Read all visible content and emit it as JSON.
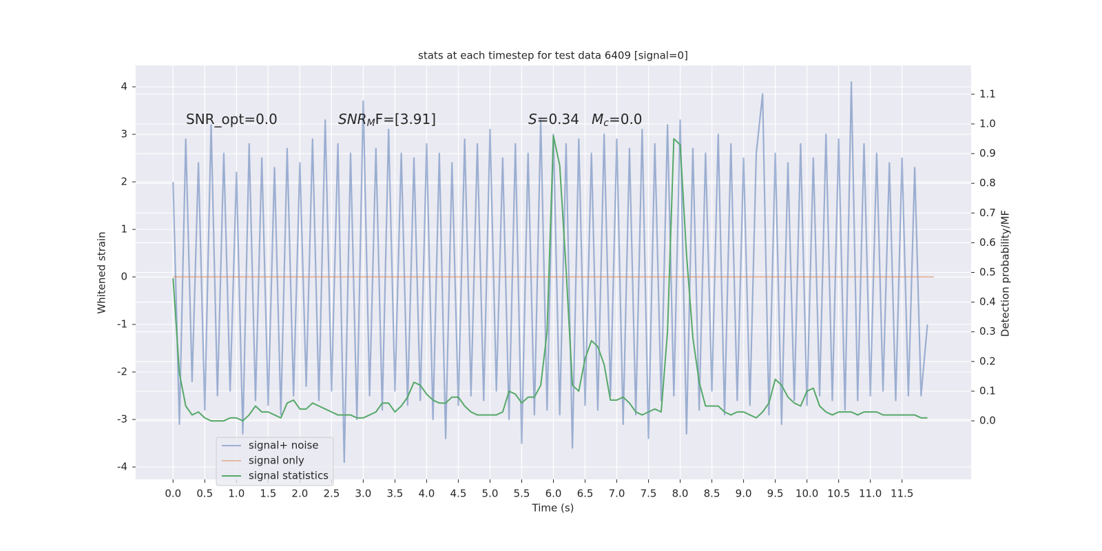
{
  "chart_data": {
    "type": "line",
    "title": "stats at each timestep for test data 6409 [signal=0]",
    "xlabel": "Time (s)",
    "ylabel": "Whitened strain",
    "y2label": "Detection probability/MF",
    "xlim": [
      -0.59,
      12.59
    ],
    "ylim": [
      -4.26,
      4.45
    ],
    "y2lim": [
      -0.197,
      1.197
    ],
    "xticks": [
      {
        "value": 0,
        "label": "0.0"
      },
      0.5,
      {
        "value": 1,
        "label": "1.0"
      },
      1.5,
      {
        "value": 2,
        "label": "2.0"
      },
      2.5,
      {
        "value": 3,
        "label": "3.0"
      },
      3.5,
      {
        "value": 4,
        "label": "4.0"
      },
      4.5,
      {
        "value": 5,
        "label": "5.0"
      },
      5.5,
      {
        "value": 6,
        "label": "6.0"
      },
      6.5,
      {
        "value": 7,
        "label": "7.0"
      },
      7.5,
      {
        "value": 8,
        "label": "8.0"
      },
      8.5,
      {
        "value": 9,
        "label": "9.0"
      },
      9.5,
      {
        "value": 10,
        "label": "10.0"
      },
      10.5,
      {
        "value": 11,
        "label": "11.0"
      },
      11.5
    ],
    "yticks": [
      -4,
      -3,
      -2,
      -1,
      0,
      1,
      2,
      3,
      4
    ],
    "y2ticks": [
      {
        "value": 0,
        "label": "0.0"
      },
      0.1,
      0.2,
      0.3,
      0.4,
      0.5,
      0.6,
      0.7,
      0.8,
      0.9,
      {
        "value": 1,
        "label": "1.0"
      },
      1.1
    ],
    "grid": true,
    "legend": "lower left",
    "annotations": [
      {
        "text": "SNR_opt=0.0"
      },
      {
        "italic": "SNR",
        "sub": "M",
        "text": "F=[3.91]"
      },
      {
        "italic": "S",
        "text": "=0.34"
      },
      {
        "italic": "M",
        "sub": "c",
        "text": "=0.0"
      }
    ],
    "series": [
      {
        "name": "signal+ noise",
        "color": "#4c72b0",
        "x": [
          0.0,
          0.1,
          0.2,
          0.3,
          0.4,
          0.5,
          0.6,
          0.7,
          0.8,
          0.9,
          1.0,
          1.1,
          1.2,
          1.3,
          1.4,
          1.5,
          1.6,
          1.7,
          1.8,
          1.9,
          2.0,
          2.1,
          2.2,
          2.3,
          2.4,
          2.5,
          2.6,
          2.7,
          2.8,
          2.9,
          3.0,
          3.1,
          3.2,
          3.3,
          3.4,
          3.5,
          3.6,
          3.7,
          3.8,
          3.9,
          4.0,
          4.1,
          4.2,
          4.3,
          4.4,
          4.5,
          4.6,
          4.7,
          4.8,
          4.9,
          5.0,
          5.1,
          5.2,
          5.3,
          5.4,
          5.5,
          5.6,
          5.7,
          5.8,
          5.9,
          6.0,
          6.1,
          6.2,
          6.3,
          6.4,
          6.5,
          6.6,
          6.7,
          6.8,
          6.9,
          7.0,
          7.1,
          7.2,
          7.3,
          7.4,
          7.5,
          7.6,
          7.7,
          7.8,
          7.9,
          8.0,
          8.1,
          8.2,
          8.3,
          8.4,
          8.5,
          8.6,
          8.7,
          8.8,
          8.9,
          9.0,
          9.1,
          9.2,
          9.3,
          9.4,
          9.5,
          9.6,
          9.7,
          9.8,
          9.9,
          10.0,
          10.1,
          10.2,
          10.3,
          10.4,
          10.5,
          10.6,
          10.7,
          10.8,
          10.9,
          11.0,
          11.1,
          11.2,
          11.3,
          11.4,
          11.5,
          11.6,
          11.7,
          11.8,
          11.9
        ],
        "values": [
          2.0,
          -3.1,
          2.9,
          -2.2,
          2.4,
          -2.8,
          3.2,
          -2.5,
          2.6,
          -2.4,
          2.2,
          -3.3,
          2.8,
          -2.6,
          2.5,
          -2.7,
          2.3,
          -2.9,
          2.7,
          -2.5,
          2.4,
          -2.3,
          2.9,
          -2.6,
          3.3,
          -2.4,
          2.8,
          -3.9,
          2.6,
          -3.0,
          3.7,
          -2.5,
          2.7,
          -2.8,
          3.1,
          -2.4,
          2.6,
          -2.7,
          2.5,
          -2.6,
          2.8,
          -3.0,
          2.6,
          -3.4,
          2.4,
          -2.7,
          2.9,
          -2.5,
          2.8,
          -2.6,
          3.1,
          -2.4,
          2.5,
          -3.0,
          2.8,
          -3.5,
          2.6,
          -2.9,
          3.3,
          -2.8,
          3.0,
          -2.9,
          2.8,
          -3.6,
          2.9,
          -2.7,
          2.6,
          -2.8,
          3.0,
          -2.5,
          2.9,
          -3.1,
          2.7,
          -2.9,
          3.1,
          -3.4,
          2.8,
          -2.6,
          3.2,
          -2.5,
          3.3,
          -3.3,
          2.7,
          -2.8,
          2.6,
          -2.4,
          3.0,
          -2.9,
          2.8,
          -2.6,
          2.5,
          -2.7,
          2.6,
          3.85,
          -2.9,
          2.6,
          -3.1,
          2.4,
          -2.6,
          2.8,
          -2.7,
          2.5,
          -2.5,
          3.0,
          -2.6,
          2.9,
          -2.8,
          4.1,
          -2.6,
          2.8,
          -2.5,
          2.6,
          -2.4,
          2.4,
          -2.6,
          2.5,
          -2.5,
          2.3,
          -2.5,
          -1.0
        ]
      },
      {
        "name": "signal only",
        "color": "#dd8452",
        "x": [
          0.0,
          12.0
        ],
        "values": [
          0,
          0
        ]
      },
      {
        "name": "signal statistics",
        "color": "#55a868",
        "axis": "y2",
        "x": [
          0.0,
          0.1,
          0.2,
          0.3,
          0.4,
          0.5,
          0.6,
          0.7,
          0.8,
          0.9,
          1.0,
          1.1,
          1.2,
          1.3,
          1.4,
          1.5,
          1.6,
          1.7,
          1.8,
          1.9,
          2.0,
          2.1,
          2.2,
          2.3,
          2.4,
          2.5,
          2.6,
          2.7,
          2.8,
          2.9,
          3.0,
          3.1,
          3.2,
          3.3,
          3.4,
          3.5,
          3.6,
          3.7,
          3.8,
          3.9,
          4.0,
          4.1,
          4.2,
          4.3,
          4.4,
          4.5,
          4.6,
          4.7,
          4.8,
          4.9,
          5.0,
          5.1,
          5.2,
          5.3,
          5.4,
          5.5,
          5.6,
          5.7,
          5.8,
          5.9,
          6.0,
          6.1,
          6.2,
          6.3,
          6.4,
          6.5,
          6.6,
          6.7,
          6.8,
          6.9,
          7.0,
          7.1,
          7.2,
          7.3,
          7.4,
          7.5,
          7.6,
          7.7,
          7.8,
          7.9,
          8.0,
          8.1,
          8.2,
          8.3,
          8.4,
          8.5,
          8.6,
          8.7,
          8.8,
          8.9,
          9.0,
          9.1,
          9.2,
          9.3,
          9.4,
          9.5,
          9.6,
          9.7,
          9.8,
          9.9,
          10.0,
          10.1,
          10.2,
          10.3,
          10.4,
          10.5,
          10.6,
          10.7,
          10.8,
          10.9,
          11.0,
          11.1,
          11.2,
          11.3,
          11.4,
          11.5,
          11.6,
          11.7,
          11.8,
          11.9
        ],
        "values": [
          0.48,
          0.16,
          0.05,
          0.02,
          0.03,
          0.01,
          0.0,
          0.0,
          0.0,
          0.01,
          0.01,
          0.0,
          0.02,
          0.05,
          0.03,
          0.03,
          0.02,
          0.01,
          0.06,
          0.07,
          0.04,
          0.04,
          0.06,
          0.05,
          0.04,
          0.03,
          0.02,
          0.02,
          0.02,
          0.01,
          0.01,
          0.02,
          0.03,
          0.06,
          0.06,
          0.03,
          0.05,
          0.08,
          0.13,
          0.12,
          0.09,
          0.07,
          0.06,
          0.06,
          0.08,
          0.08,
          0.05,
          0.03,
          0.02,
          0.02,
          0.02,
          0.02,
          0.03,
          0.1,
          0.09,
          0.06,
          0.08,
          0.08,
          0.12,
          0.3,
          0.96,
          0.86,
          0.51,
          0.12,
          0.1,
          0.21,
          0.27,
          0.25,
          0.19,
          0.07,
          0.07,
          0.08,
          0.06,
          0.03,
          0.02,
          0.03,
          0.04,
          0.03,
          0.3,
          0.95,
          0.93,
          0.56,
          0.28,
          0.13,
          0.05,
          0.05,
          0.05,
          0.03,
          0.02,
          0.03,
          0.03,
          0.02,
          0.01,
          0.03,
          0.06,
          0.14,
          0.12,
          0.08,
          0.06,
          0.05,
          0.1,
          0.11,
          0.05,
          0.03,
          0.02,
          0.03,
          0.03,
          0.03,
          0.02,
          0.03,
          0.03,
          0.03,
          0.02,
          0.02,
          0.02,
          0.02,
          0.02,
          0.02,
          0.01,
          0.01
        ]
      }
    ]
  }
}
